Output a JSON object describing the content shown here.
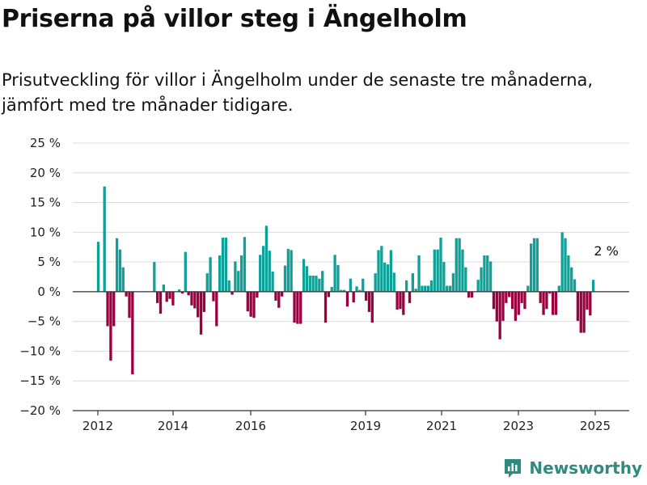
{
  "title": "Priserna på villor steg i Ängelholm",
  "subtitle": "Prisutveckling för villor i Ängelholm under de senaste tre månaderna, jämfört med tre månader tidigare.",
  "brand": "Newsworthy",
  "colors": {
    "positive": "#0fa098",
    "negative": "#9a0040",
    "grid": "#dcdcdc"
  },
  "chart_data": {
    "type": "bar",
    "title": "",
    "xlabel": "",
    "ylabel": "",
    "ylim": [
      -20,
      25
    ],
    "y_ticks": [
      25,
      20,
      15,
      10,
      5,
      0,
      -5,
      -10,
      -15,
      -20
    ],
    "y_tick_labels": [
      "25 %",
      "20 %",
      "15 %",
      "10 %",
      "5 %",
      "0 %",
      "−5 %",
      "−10 %",
      "−15 %",
      "−20 %"
    ],
    "x_ticks": [
      "2012",
      "2014",
      "2016",
      "2019",
      "2021",
      "2023",
      "2025"
    ],
    "grid": true,
    "annotation": "2 %",
    "unit": "%",
    "series": [
      {
        "values": [
          8.4,
          0,
          17.7,
          -5.8,
          -11.6,
          -5.8,
          9.0,
          7.1,
          4.1,
          -0.8,
          -4.4,
          -13.9,
          0,
          0,
          0,
          0,
          0,
          0,
          5.0,
          -1.9,
          -3.7,
          1.2,
          -1.7,
          -1.2,
          -2.3,
          0,
          0.4,
          -0.3,
          6.7,
          -0.6,
          -2.3,
          -2.8,
          -4.3,
          -7.2,
          -3.4,
          3.1,
          5.8,
          -1.6,
          -5.8,
          6.1,
          9.1,
          9.1,
          1.9,
          -0.5,
          5.1,
          3.5,
          6.1,
          9.2,
          -3.3,
          -4.2,
          -4.4,
          -1.0,
          6.2,
          7.7,
          11.1,
          6.9,
          3.4,
          -1.5,
          -2.7,
          -0.8,
          4.4,
          7.2,
          7.0,
          -5.2,
          -5.4,
          -5.4,
          5.5,
          4.3,
          2.7,
          2.7,
          2.7,
          2.2,
          3.5,
          -5.2,
          -0.9,
          0.8,
          6.2,
          4.5,
          0.3,
          0.3,
          -2.5,
          2.2,
          -1.8,
          0.9,
          0.3,
          2.2,
          -1.5,
          -3.4,
          -5.2,
          3.1,
          7.0,
          7.7,
          4.9,
          4.6,
          7.0,
          3.2,
          -3.0,
          -2.9,
          -3.9,
          1.9,
          -1.9,
          3.1,
          0.5,
          6.1,
          1.0,
          1.0,
          1.0,
          1.9,
          7.1,
          7.1,
          9.1,
          5.0,
          1.0,
          1.0,
          3.1,
          9.0,
          9.0,
          7.1,
          4.1,
          -1.0,
          -1.0,
          0,
          2.0,
          4.1,
          6.1,
          6.1,
          5.1,
          -2.9,
          -5.0,
          -8.0,
          -4.9,
          -1.9,
          -0.9,
          -2.9,
          -4.9,
          -3.9,
          -1.9,
          -2.9,
          1.0,
          8.1,
          9.0,
          9.0,
          -1.9,
          -3.9,
          -2.9,
          -0.3,
          -3.9,
          -3.9,
          1.0,
          10.0,
          9.0,
          6.1,
          4.1,
          2.1,
          -4.9,
          -6.9,
          -6.9,
          -3.0,
          -4.0,
          2.0
        ]
      }
    ]
  }
}
